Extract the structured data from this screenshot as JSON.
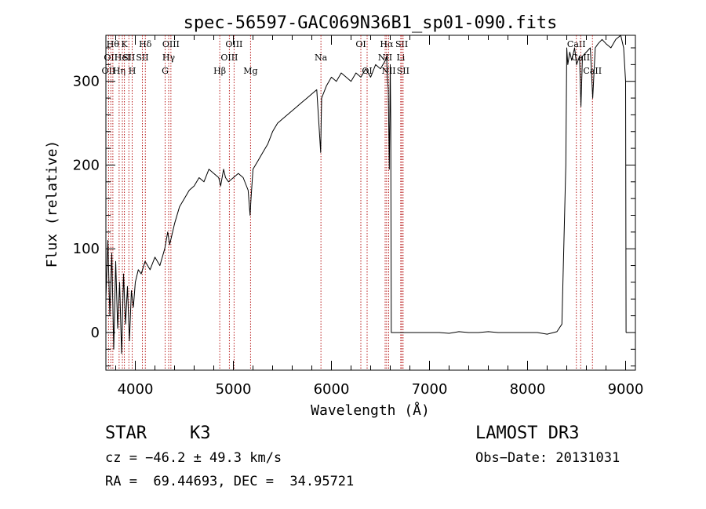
{
  "chart_data": {
    "type": "line",
    "title": "spec-56597-GAC069N36B1_sp01-090.fits",
    "xlabel": "Wavelength (Å)",
    "ylabel": "Flux (relative)",
    "xlim": [
      3700,
      9100
    ],
    "ylim": [
      -45,
      355
    ],
    "x_ticks": [
      4000,
      5000,
      6000,
      7000,
      8000,
      9000
    ],
    "y_ticks": [
      0,
      100,
      200,
      300
    ],
    "line_color": "#000000",
    "marker_color": "#b00000",
    "series": [
      {
        "name": "spectrum",
        "x": [
          3700,
          3720,
          3740,
          3760,
          3780,
          3800,
          3820,
          3840,
          3860,
          3880,
          3900,
          3920,
          3940,
          3960,
          3980,
          4000,
          4030,
          4060,
          4100,
          4150,
          4200,
          4250,
          4300,
          4330,
          4350,
          4400,
          4450,
          4500,
          4550,
          4600,
          4650,
          4700,
          4750,
          4800,
          4850,
          4870,
          4900,
          4920,
          4950,
          5000,
          5050,
          5100,
          5150,
          5170,
          5180,
          5200,
          5250,
          5300,
          5350,
          5400,
          5450,
          5500,
          5550,
          5600,
          5650,
          5700,
          5750,
          5800,
          5850,
          5890,
          5895,
          5900,
          5950,
          6000,
          6050,
          6100,
          6150,
          6200,
          6250,
          6300,
          6350,
          6400,
          6450,
          6500,
          6550,
          6563,
          6570,
          6580,
          6590,
          6600,
          6605,
          6610,
          6620,
          6700,
          6800,
          6900,
          7000,
          7100,
          7200,
          7300,
          7400,
          7500,
          7600,
          7700,
          7800,
          7900,
          8000,
          8100,
          8200,
          8300,
          8350,
          8390,
          8400,
          8410,
          8430,
          8450,
          8480,
          8500,
          8530,
          8545,
          8560,
          8600,
          8640,
          8665,
          8690,
          8720,
          8760,
          8800,
          8850,
          8900,
          8950,
          8980,
          9000,
          9005
        ],
        "flux": [
          40,
          110,
          20,
          95,
          -20,
          85,
          5,
          60,
          -25,
          70,
          10,
          55,
          -10,
          50,
          30,
          60,
          75,
          70,
          85,
          75,
          90,
          80,
          100,
          120,
          105,
          130,
          150,
          160,
          170,
          175,
          185,
          180,
          195,
          190,
          185,
          175,
          195,
          185,
          180,
          185,
          190,
          185,
          170,
          140,
          160,
          195,
          205,
          215,
          225,
          240,
          250,
          255,
          260,
          265,
          270,
          275,
          280,
          285,
          290,
          215,
          250,
          280,
          295,
          305,
          300,
          310,
          305,
          300,
          310,
          305,
          315,
          305,
          320,
          315,
          325,
          330,
          305,
          290,
          195,
          320,
          250,
          0,
          0,
          0,
          0,
          0,
          0,
          0,
          -1,
          1,
          0,
          0,
          1,
          0,
          0,
          0,
          0,
          0,
          -2,
          1,
          10,
          200,
          340,
          320,
          335,
          325,
          340,
          320,
          330,
          270,
          330,
          335,
          340,
          280,
          340,
          345,
          350,
          345,
          340,
          350,
          355,
          340,
          300,
          0
        ]
      }
    ],
    "line_markers": [
      {
        "wl": 3727,
        "row": 2,
        "label": "OII"
      },
      {
        "wl": 3750,
        "row": 1,
        "label": "OII"
      },
      {
        "wl": 3771,
        "row": 0,
        "label": "Hθ"
      },
      {
        "wl": 3835,
        "row": 2,
        "label": "Hη"
      },
      {
        "wl": 3868,
        "row": 1,
        "label": "HeI"
      },
      {
        "wl": 3889,
        "row": 0,
        "label": "K"
      },
      {
        "wl": 3934,
        "row": 1,
        "label": "SII"
      },
      {
        "wl": 3968,
        "row": 2,
        "label": "H"
      },
      {
        "wl": 4072,
        "row": 1,
        "label": "SII"
      },
      {
        "wl": 4102,
        "row": 0,
        "label": "Hδ"
      },
      {
        "wl": 4304,
        "row": 2,
        "label": "G"
      },
      {
        "wl": 4340,
        "row": 1,
        "label": "Hγ"
      },
      {
        "wl": 4363,
        "row": 0,
        "label": "OIII"
      },
      {
        "wl": 4861,
        "row": 2,
        "label": "Hβ"
      },
      {
        "wl": 4959,
        "row": 1,
        "label": "OIII"
      },
      {
        "wl": 5007,
        "row": 0,
        "label": "OIII"
      },
      {
        "wl": 5175,
        "row": 2,
        "label": "Mg"
      },
      {
        "wl": 5893,
        "row": 1,
        "label": "Na"
      },
      {
        "wl": 6300,
        "row": 0,
        "label": "OI"
      },
      {
        "wl": 6364,
        "row": 2,
        "label": "OI"
      },
      {
        "wl": 6548,
        "row": 1,
        "label": "NII"
      },
      {
        "wl": 6563,
        "row": 0,
        "label": "Hα"
      },
      {
        "wl": 6584,
        "row": 2,
        "label": "NII"
      },
      {
        "wl": 6707,
        "row": 1,
        "label": "Li"
      },
      {
        "wl": 6717,
        "row": 0,
        "label": "SII"
      },
      {
        "wl": 6731,
        "row": 2,
        "label": "SII"
      },
      {
        "wl": 8498,
        "row": 0,
        "label": "CaII"
      },
      {
        "wl": 8542,
        "row": 1,
        "label": "CaII"
      },
      {
        "wl": 8662,
        "row": 2,
        "label": "CaII"
      }
    ]
  },
  "info": {
    "class": "STAR",
    "subclass": "K3",
    "survey": "LAMOST DR3",
    "cz": "cz = −46.2 ± 49.3 km/s",
    "obs_date": "Obs−Date: 20131031",
    "coords": "RA =  69.44693, DEC =  34.95721"
  }
}
